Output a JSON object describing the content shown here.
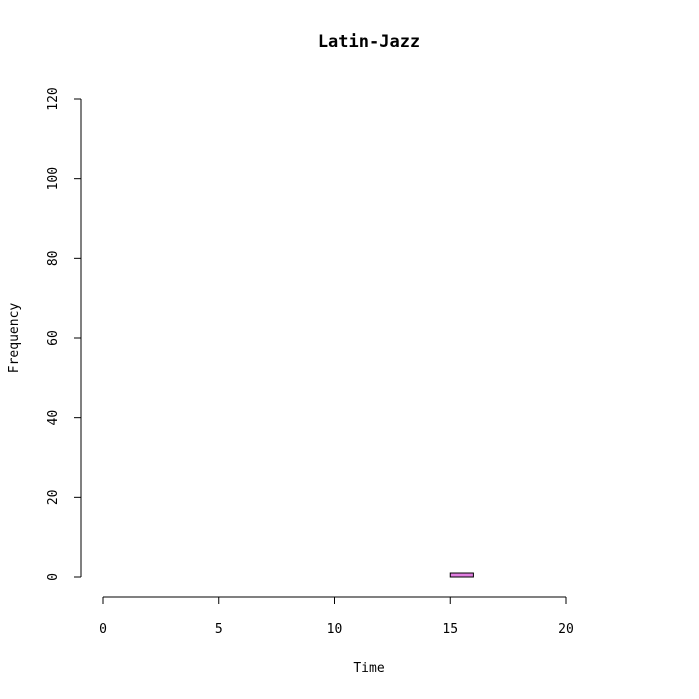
{
  "chart_data": {
    "type": "bar",
    "title": "Latin-Jazz",
    "xlabel": "Time",
    "ylabel": "Frequency",
    "xlim": [
      0,
      24
    ],
    "ylim": [
      0,
      120
    ],
    "x_ticks": [
      "0",
      "5",
      "10",
      "15",
      "20"
    ],
    "y_ticks": [
      "0",
      "20",
      "40",
      "60",
      "80",
      "100",
      "120"
    ],
    "bin_width": 1,
    "bins": [
      {
        "x0": 0,
        "x1": 1,
        "value": 0
      },
      {
        "x0": 1,
        "x1": 2,
        "value": 0
      },
      {
        "x0": 2,
        "x1": 3,
        "value": 0
      },
      {
        "x0": 3,
        "x1": 4,
        "value": 0
      },
      {
        "x0": 4,
        "x1": 5,
        "value": 0
      },
      {
        "x0": 5,
        "x1": 6,
        "value": 0
      },
      {
        "x0": 6,
        "x1": 7,
        "value": 0
      },
      {
        "x0": 7,
        "x1": 8,
        "value": 0
      },
      {
        "x0": 8,
        "x1": 9,
        "value": 0
      },
      {
        "x0": 9,
        "x1": 10,
        "value": 0
      },
      {
        "x0": 10,
        "x1": 11,
        "value": 0
      },
      {
        "x0": 11,
        "x1": 12,
        "value": 0
      },
      {
        "x0": 12,
        "x1": 13,
        "value": 0
      },
      {
        "x0": 13,
        "x1": 14,
        "value": 0
      },
      {
        "x0": 14,
        "x1": 15,
        "value": 0
      },
      {
        "x0": 15,
        "x1": 16,
        "value": 1
      },
      {
        "x0": 16,
        "x1": 17,
        "value": 0
      },
      {
        "x0": 17,
        "x1": 18,
        "value": 0
      },
      {
        "x0": 18,
        "x1": 19,
        "value": 0
      },
      {
        "x0": 19,
        "x1": 20,
        "value": 0
      },
      {
        "x0": 20,
        "x1": 21,
        "value": 0
      },
      {
        "x0": 21,
        "x1": 22,
        "value": 0
      },
      {
        "x0": 22,
        "x1": 23,
        "value": 0
      },
      {
        "x0": 23,
        "x1": 24,
        "value": 0
      }
    ],
    "bar_color": "#e07ee0",
    "bar_border_color": "#000000",
    "grid": false,
    "legend": "none"
  }
}
